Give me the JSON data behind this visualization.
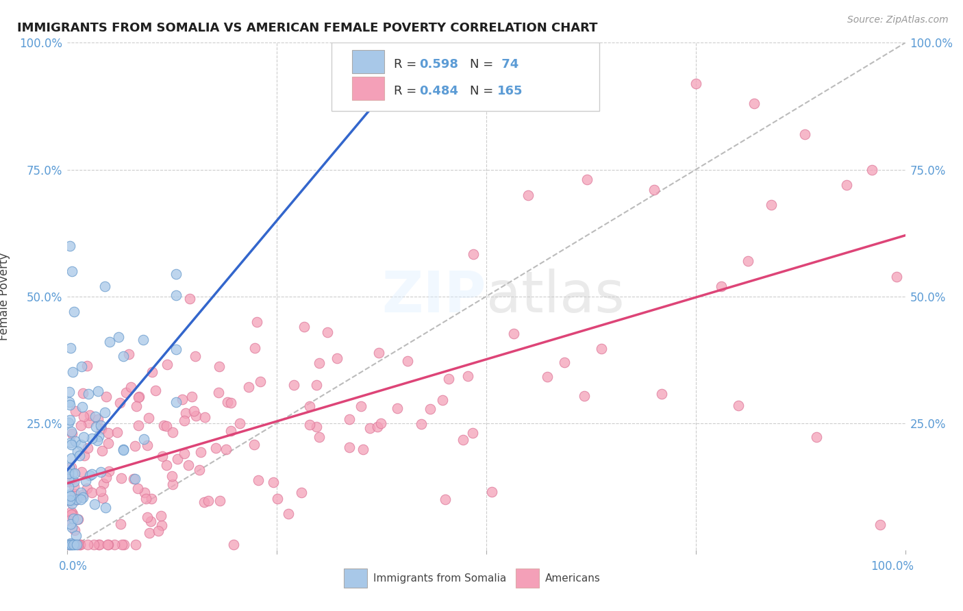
{
  "title": "IMMIGRANTS FROM SOMALIA VS AMERICAN FEMALE POVERTY CORRELATION CHART",
  "source": "Source: ZipAtlas.com",
  "ylabel": "Female Poverty",
  "legend_1_label": "Immigrants from Somalia",
  "legend_2_label": "Americans",
  "R1": 0.598,
  "N1": 74,
  "R2": 0.484,
  "N2": 165,
  "color_blue": "#A8C8E8",
  "color_pink": "#F4A0B8",
  "color_blue_edge": "#6699CC",
  "color_pink_edge": "#DD7799",
  "color_blue_line": "#3366CC",
  "color_pink_line": "#DD4477",
  "color_dashed_line": "#BBBBBB",
  "background_color": "#FFFFFF",
  "watermark": "ZIPatlas",
  "grid_color": "#CCCCCC"
}
